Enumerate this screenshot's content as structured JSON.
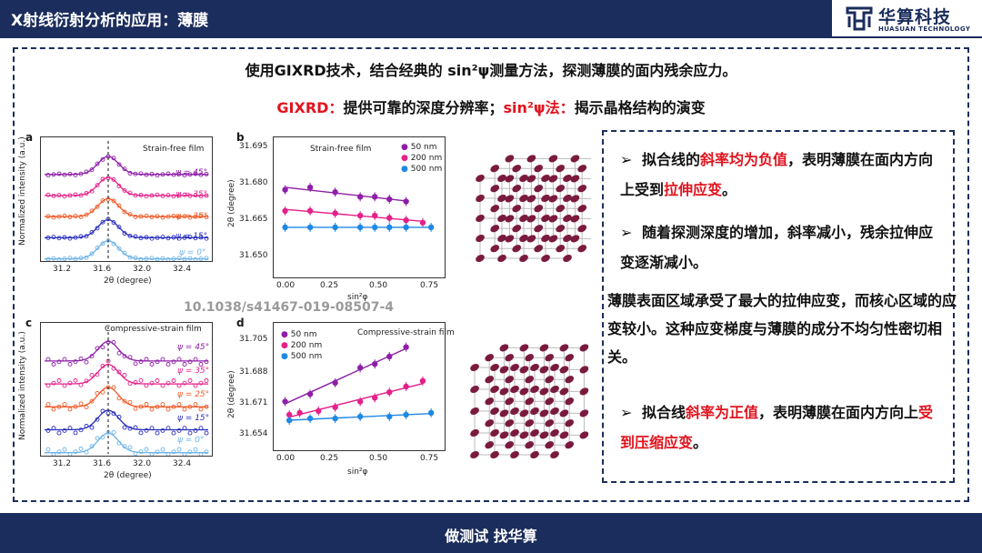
{
  "header": {
    "title": "X射线衍射分析的应用：薄膜"
  },
  "logo": {
    "cn": "华算科技",
    "en": "HUASUAN TECHNOLOGY"
  },
  "intro": "使用GIXRD技术，结合经典的 sin²ψ测量方法，探测薄膜的面内残余应力。",
  "sub": {
    "gixrd_label": "GIXRD：",
    "gixrd_text": "提供可靠的深度分辨率；",
    "sin_label": "sin²ψ法：",
    "sin_text": "揭示晶格结构的演变"
  },
  "doi": "10.1038/s41467-019-08507-4",
  "panels": {
    "a": {
      "letter": "a",
      "title": "Strain-free film",
      "ylabel": "Normalized intensity (a.u.)",
      "xlabel": "2θ (degree)",
      "xticks": [
        "31.2",
        "31.6",
        "32.0",
        "32.4"
      ],
      "psi": [
        "ψ = 45°",
        "ψ = 35°",
        "ψ = 25°",
        "ψ = 15°",
        "ψ = 0°"
      ]
    },
    "b": {
      "letter": "b",
      "title": "Strain-free film",
      "ylabel": "2θ (degree)",
      "xlabel": "sin²φ",
      "yticks": [
        "31.695",
        "31.680",
        "31.665",
        "31.650"
      ],
      "xticks": [
        "0.00",
        "0.25",
        "0.50",
        "0.75"
      ],
      "legend": [
        "50 nm",
        "200 nm",
        "500 nm"
      ]
    },
    "c": {
      "letter": "c",
      "title": "Compressive-strain film",
      "ylabel": "Normalized intensity (a.u.)",
      "xlabel": "2θ (degree)",
      "xticks": [
        "31.2",
        "31.6",
        "32.0",
        "32.4"
      ],
      "psi": [
        "ψ = 45°",
        "ψ = 35°",
        "ψ = 25°",
        "ψ = 15°",
        "ψ = 0°"
      ]
    },
    "d": {
      "letter": "d",
      "title": "Compressive-strain film",
      "ylabel": "2θ (degree)",
      "xlabel": "sin²φ",
      "yticks": [
        "31.705",
        "31.688",
        "31.671",
        "31.654"
      ],
      "xticks": [
        "0.00",
        "0.25",
        "0.50",
        "0.75"
      ],
      "legend": [
        "50 nm",
        "200 nm",
        "500 nm"
      ]
    }
  },
  "series_colors": [
    "#8e1ea8",
    "#e4208a",
    "#1e88e5"
  ],
  "chart_data": [
    {
      "panel": "b",
      "type": "scatter",
      "x_label": "sin²φ",
      "y_label": "2θ (degree)",
      "ylim": [
        31.645,
        31.7
      ],
      "xlim": [
        0,
        0.75
      ],
      "series": [
        {
          "name": "50 nm",
          "x": [
            0.02,
            0.14,
            0.26,
            0.38,
            0.45,
            0.52,
            0.6
          ],
          "y": [
            31.68,
            31.681,
            31.679,
            31.677,
            31.677,
            31.676,
            31.675
          ]
        },
        {
          "name": "200 nm",
          "x": [
            0.02,
            0.14,
            0.26,
            0.38,
            0.45,
            0.52,
            0.6,
            0.68
          ],
          "y": [
            31.671,
            31.671,
            31.67,
            31.669,
            31.669,
            31.668,
            31.667,
            31.666
          ]
        },
        {
          "name": "500 nm",
          "x": [
            0.02,
            0.14,
            0.26,
            0.38,
            0.45,
            0.52,
            0.6,
            0.72
          ],
          "y": [
            31.664,
            31.664,
            31.664,
            31.664,
            31.664,
            31.664,
            31.664,
            31.664
          ]
        }
      ]
    },
    {
      "panel": "d",
      "type": "scatter",
      "x_label": "sin²φ",
      "y_label": "2θ (degree)",
      "ylim": [
        31.65,
        31.712
      ],
      "xlim": [
        0,
        0.75
      ],
      "series": [
        {
          "name": "50 nm",
          "x": [
            0.02,
            0.14,
            0.26,
            0.38,
            0.45,
            0.52,
            0.6
          ],
          "y": [
            31.673,
            31.677,
            31.683,
            31.691,
            31.693,
            31.697,
            31.702
          ]
        },
        {
          "name": "200 nm",
          "x": [
            0.04,
            0.09,
            0.18,
            0.26,
            0.38,
            0.45,
            0.52,
            0.6,
            0.68
          ],
          "y": [
            31.666,
            31.667,
            31.668,
            31.67,
            31.673,
            31.675,
            31.678,
            31.681,
            31.684
          ]
        },
        {
          "name": "500 nm",
          "x": [
            0.04,
            0.14,
            0.26,
            0.38,
            0.52,
            0.6,
            0.72
          ],
          "y": [
            31.663,
            31.664,
            31.664,
            31.665,
            31.665,
            31.666,
            31.667
          ]
        }
      ]
    }
  ],
  "bullets": [
    {
      "pre": "拟合线的",
      "red": "斜率均为负值",
      "post": "，表明薄膜在面内方向上受到",
      "red2": "拉伸应变",
      "end": "。"
    },
    {
      "text": "随着探测深度的增加，斜率减小，残余拉伸应变逐渐减小。"
    },
    {
      "pre": "拟合线",
      "red": "斜率为正值",
      "post": "，表明薄膜在面内方向上",
      "red2": "受到压缩应变",
      "end": "。"
    }
  ],
  "paragraph": "薄膜表面区域承受了最大的拉伸应变，而核心区域的应变较小。这种应变梯度与薄膜的成分不均匀性密切相关。",
  "footer": "做测试 找华算"
}
